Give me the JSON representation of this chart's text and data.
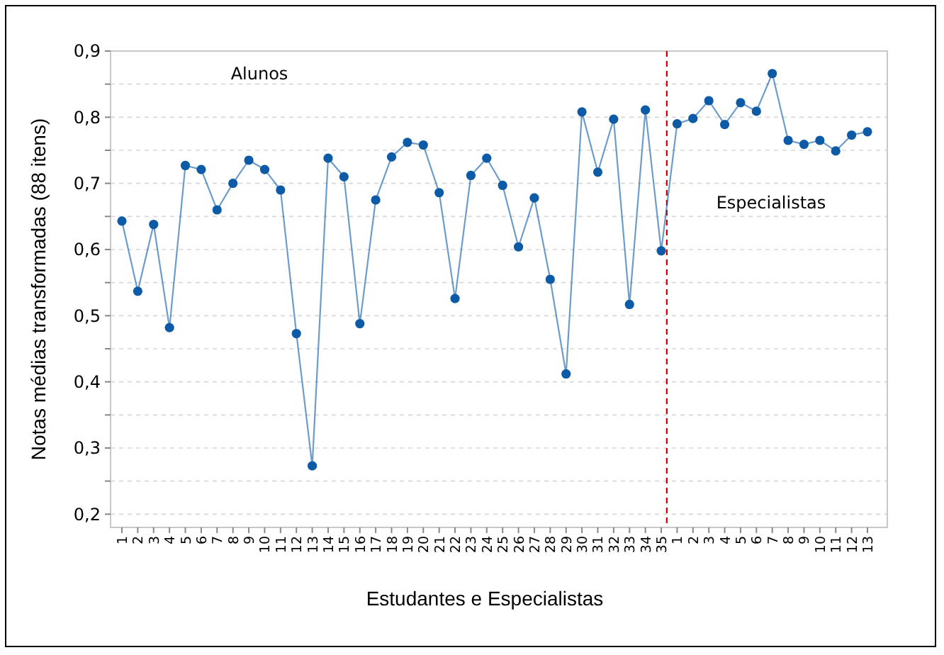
{
  "chart_data": {
    "type": "line",
    "xlabel": "Estudantes e Especialistas",
    "ylabel": "Notas médias transformadas (88 itens)",
    "categories": [
      "1",
      "2",
      "3",
      "4",
      "5",
      "6",
      "7",
      "8",
      "9",
      "10",
      "11",
      "12",
      "13",
      "14",
      "15",
      "16",
      "17",
      "18",
      "19",
      "20",
      "21",
      "22",
      "23",
      "24",
      "25",
      "26",
      "27",
      "28",
      "29",
      "30",
      "31",
      "32",
      "33",
      "34",
      "35",
      "1",
      "2",
      "3",
      "4",
      "5",
      "6",
      "7",
      "8",
      "9",
      "10",
      "11",
      "12",
      "13"
    ],
    "series": [
      {
        "color": "#0d5aa7",
        "values": [
          0.643,
          0.537,
          0.638,
          0.482,
          0.727,
          0.721,
          0.66,
          0.7,
          0.735,
          0.721,
          0.69,
          0.473,
          0.273,
          0.738,
          0.71,
          0.488,
          0.675,
          0.74,
          0.762,
          0.758,
          0.686,
          0.526,
          0.712,
          0.738,
          0.697,
          0.604,
          0.678,
          0.555,
          0.412,
          0.808,
          0.717,
          0.797,
          0.517,
          0.811,
          0.598,
          0.79,
          0.798,
          0.825,
          0.789,
          0.822,
          0.809,
          0.866,
          0.765,
          0.759,
          0.765,
          0.749,
          0.773,
          0.778
        ]
      }
    ],
    "ylim": [
      0.18,
      0.9
    ],
    "yticks": [
      {
        "value": 0.2,
        "label": "0,2"
      },
      {
        "value": 0.25,
        "label": null
      },
      {
        "value": 0.3,
        "label": "0,3"
      },
      {
        "value": 0.35,
        "label": null
      },
      {
        "value": 0.4,
        "label": "0,4"
      },
      {
        "value": 0.45,
        "label": null
      },
      {
        "value": 0.5,
        "label": "0,5"
      },
      {
        "value": 0.55,
        "label": null
      },
      {
        "value": 0.6,
        "label": "0,6"
      },
      {
        "value": 0.65,
        "label": null
      },
      {
        "value": 0.7,
        "label": "0,7"
      },
      {
        "value": 0.75,
        "label": null
      },
      {
        "value": 0.8,
        "label": "0,8"
      },
      {
        "value": 0.85,
        "label": null
      },
      {
        "value": 0.9,
        "label": "0,9"
      }
    ],
    "grid": "y",
    "marker": "circle",
    "line_style": "solid",
    "ref_lines": [
      {
        "axis": "x",
        "value": "35",
        "color": "#c00000",
        "line_style": "dashed"
      }
    ],
    "annotations": [
      "Alunos",
      "Especialistas"
    ]
  }
}
